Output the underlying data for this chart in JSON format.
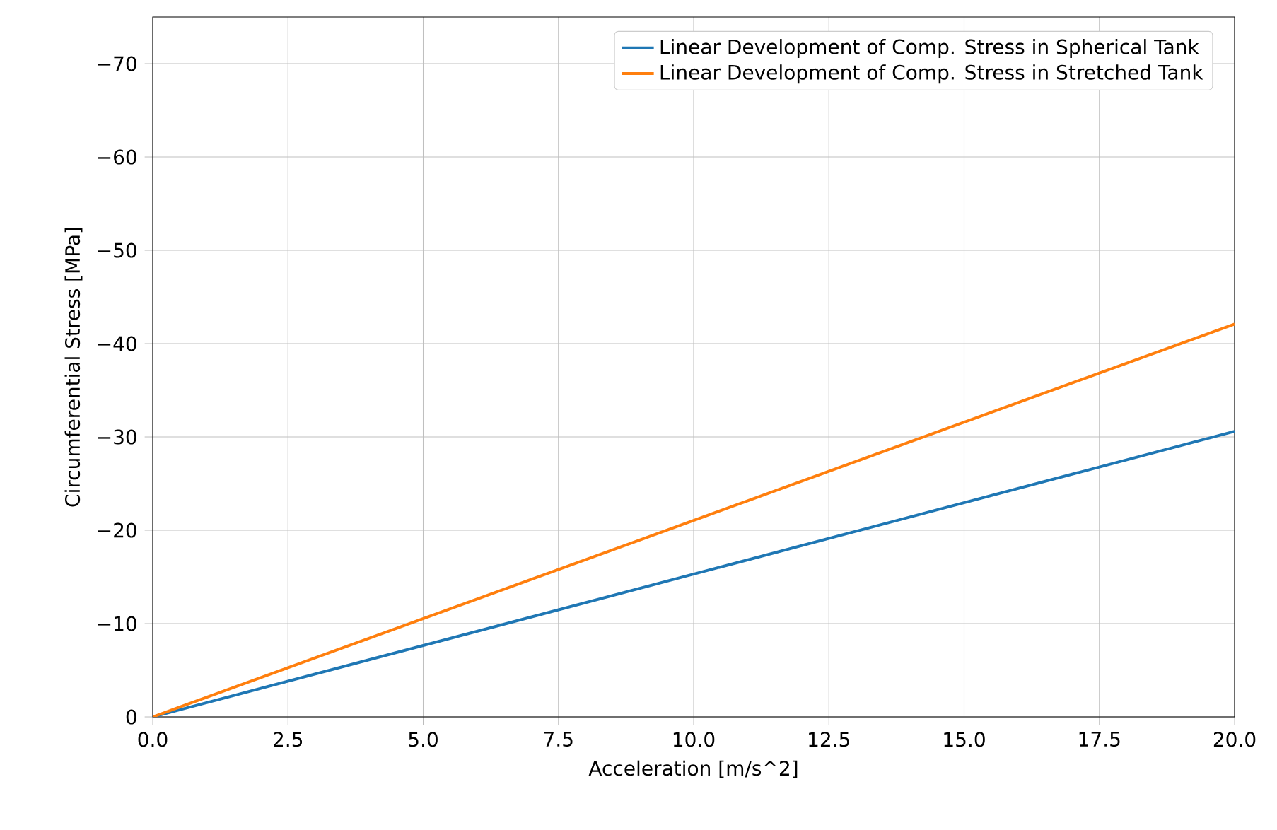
{
  "chart_data": {
    "type": "line",
    "xlabel": "Acceleration [m/s^2]",
    "ylabel": "Circumferential Stress [MPa]",
    "x": [
      0,
      20
    ],
    "series": [
      {
        "name": "Linear Development of Comp. Stress in Spherical Tank",
        "color": "#1f77b4",
        "values": [
          0,
          -30.6
        ]
      },
      {
        "name": "Linear Development of Comp. Stress in Stretched Tank",
        "color": "#ff7f0e",
        "values": [
          0,
          -42.1
        ]
      }
    ],
    "xlim": [
      0,
      20
    ],
    "xticks": [
      {
        "value": 0,
        "label": "0.0"
      },
      {
        "value": 2.5,
        "label": "2.5"
      },
      {
        "value": 5,
        "label": "5.0"
      },
      {
        "value": 7.5,
        "label": "7.5"
      },
      {
        "value": 10,
        "label": "10.0"
      },
      {
        "value": 12.5,
        "label": "12.5"
      },
      {
        "value": 15,
        "label": "15.0"
      },
      {
        "value": 17.5,
        "label": "17.5"
      },
      {
        "value": 20,
        "label": "20.0"
      }
    ],
    "ylim": [
      0,
      -75
    ],
    "yticks": [
      0,
      {
        "value": -10,
        "label": "−10"
      },
      {
        "value": -20,
        "label": "−20"
      },
      {
        "value": -30,
        "label": "−30"
      },
      {
        "value": -40,
        "label": "−40"
      },
      {
        "value": -50,
        "label": "−50"
      },
      {
        "value": -60,
        "label": "−60"
      },
      {
        "value": -70,
        "label": "−70"
      }
    ],
    "grid": true,
    "legend": "top right",
    "marker": "none",
    "line_style": "solid"
  }
}
